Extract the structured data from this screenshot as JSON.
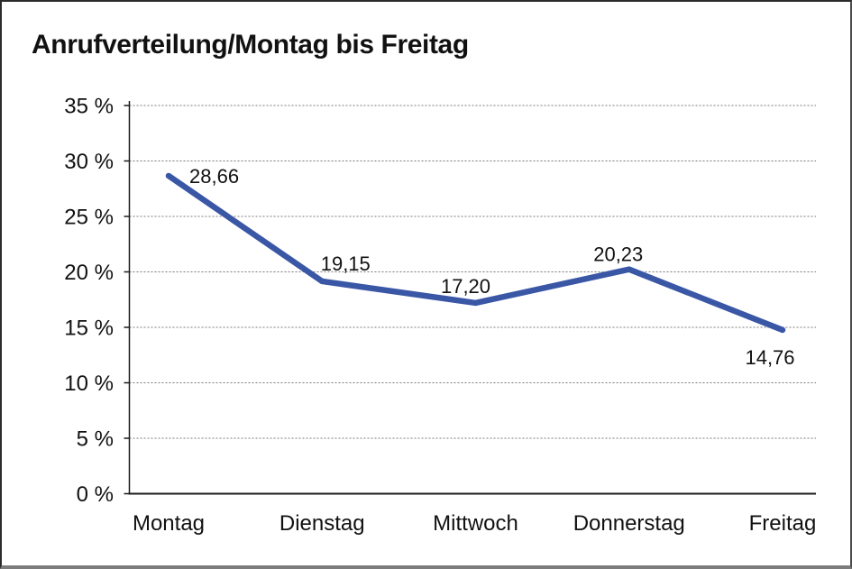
{
  "chart_data": {
    "type": "line",
    "title": "Anrufverteilung/Montag bis Freitag",
    "categories": [
      "Montag",
      "Dienstag",
      "Mittwoch",
      "Donnerstag",
      "Freitag"
    ],
    "values": [
      28.66,
      19.15,
      17.2,
      20.23,
      14.76
    ],
    "value_labels": [
      "28,66",
      "19,15",
      "17,20",
      "20,23",
      "14,76"
    ],
    "xlabel": "",
    "ylabel": "",
    "ylim": [
      0,
      35
    ],
    "ytick_step": 5,
    "ytick_labels": [
      "0 %",
      "5 %",
      "10 %",
      "15 %",
      "20 %",
      "25 %",
      "30 %",
      "35 %"
    ],
    "grid": "horizontal-dotted",
    "legend": "none",
    "line_color": "#3a57a6",
    "gridline_color": "#7a7a7a",
    "axis_color": "#1a1a1a"
  }
}
